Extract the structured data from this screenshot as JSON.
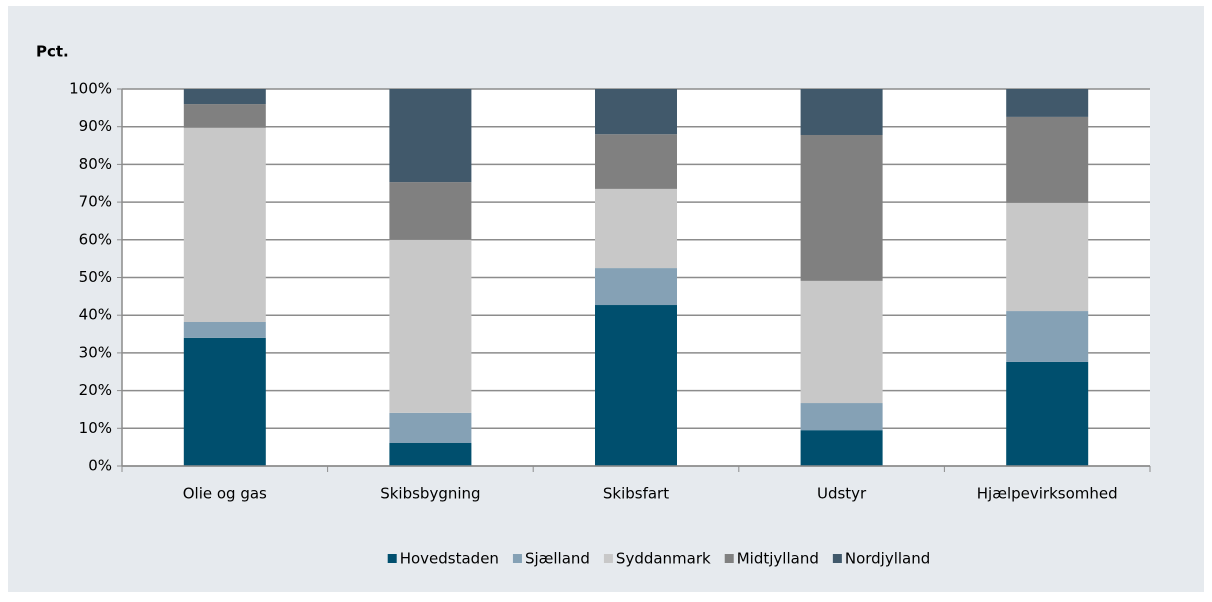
{
  "chart_data": {
    "type": "stacked_bar",
    "title": "Pct.",
    "categories": [
      "Olie og gas",
      "Skibsbygning",
      "Skibsfart",
      "Udstyr",
      "Hjælpevirksomhed"
    ],
    "series": [
      {
        "name": "Hovedstaden",
        "color": "#004f6e",
        "values": [
          34,
          6.1,
          42.7,
          9.5,
          27.6
        ]
      },
      {
        "name": "Sjælland",
        "color": "#85a1b5",
        "values": [
          4.2,
          8,
          9.8,
          7.2,
          13.5
        ]
      },
      {
        "name": "Syddanmark",
        "color": "#c8c8c8",
        "values": [
          51.5,
          45.9,
          21,
          32.4,
          28.7
        ]
      },
      {
        "name": "Midtjylland",
        "color": "#808080",
        "values": [
          6.3,
          15.3,
          14.5,
          38.7,
          22.8
        ]
      },
      {
        "name": "Nordjylland",
        "color": "#41596b",
        "values": [
          4,
          24.7,
          12,
          12.2,
          7.4
        ]
      }
    ],
    "ylim": [
      0,
      100
    ],
    "yticks": [
      {
        "value": 0,
        "label": "0%"
      },
      {
        "value": 10,
        "label": "10%"
      },
      {
        "value": 20,
        "label": "20%"
      },
      {
        "value": 30,
        "label": "30%"
      },
      {
        "value": 40,
        "label": "40%"
      },
      {
        "value": 50,
        "label": "50%"
      },
      {
        "value": 60,
        "label": "60%"
      },
      {
        "value": 70,
        "label": "70%"
      },
      {
        "value": 80,
        "label": "80%"
      },
      {
        "value": 90,
        "label": "90%"
      },
      {
        "value": 100,
        "label": "100%"
      }
    ],
    "grid": true,
    "legend": "bottom"
  }
}
